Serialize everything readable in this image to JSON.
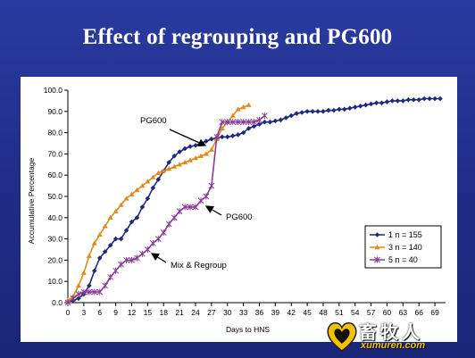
{
  "slide": {
    "title": "Effect of regrouping and PG600"
  },
  "chart_data": {
    "type": "line",
    "title": "",
    "xlabel": "Days to HNS",
    "ylabel": "Accumulative Percentage",
    "xlim": [
      0,
      71
    ],
    "ylim": [
      0,
      100
    ],
    "x_ticks": [
      0,
      3,
      6,
      9,
      12,
      15,
      18,
      21,
      24,
      27,
      30,
      33,
      36,
      39,
      42,
      45,
      48,
      51,
      54,
      57,
      60,
      63,
      66,
      69
    ],
    "y_ticks": [
      "0.0",
      "10.0",
      "20.0",
      "30.0",
      "40.0",
      "50.0",
      "60.0",
      "70.0",
      "80.0",
      "90.0",
      "100.0"
    ],
    "grid": false,
    "legend_position": "bottom-right",
    "series": [
      {
        "name": "1 n = 155",
        "color": "#1f2a7a",
        "marker": "diamond",
        "points": [
          [
            0,
            0.5
          ],
          [
            1,
            1
          ],
          [
            2,
            2
          ],
          [
            3,
            4
          ],
          [
            4,
            8
          ],
          [
            5,
            15
          ],
          [
            6,
            21
          ],
          [
            7,
            24
          ],
          [
            8,
            27
          ],
          [
            9,
            30
          ],
          [
            10,
            30
          ],
          [
            11,
            34
          ],
          [
            12,
            38
          ],
          [
            13,
            40
          ],
          [
            14,
            45
          ],
          [
            15,
            49
          ],
          [
            16,
            54
          ],
          [
            17,
            58
          ],
          [
            18,
            62
          ],
          [
            19,
            66
          ],
          [
            20,
            69
          ],
          [
            21,
            71
          ],
          [
            22,
            72.5
          ],
          [
            23,
            73.5
          ],
          [
            24,
            74
          ],
          [
            25,
            75
          ],
          [
            26,
            76
          ],
          [
            27,
            77
          ],
          [
            28,
            77.5
          ],
          [
            29,
            78
          ],
          [
            30,
            78
          ],
          [
            31,
            78.5
          ],
          [
            32,
            79
          ],
          [
            33,
            80
          ],
          [
            34,
            82
          ],
          [
            35,
            83
          ],
          [
            36,
            84
          ],
          [
            37,
            85
          ],
          [
            38,
            85
          ],
          [
            39,
            85.5
          ],
          [
            40,
            86
          ],
          [
            41,
            87
          ],
          [
            42,
            88
          ],
          [
            43,
            89
          ],
          [
            44,
            89.5
          ],
          [
            45,
            90
          ],
          [
            46,
            90
          ],
          [
            47,
            90
          ],
          [
            48,
            90
          ],
          [
            49,
            90.5
          ],
          [
            50,
            90.5
          ],
          [
            51,
            91
          ],
          [
            52,
            91
          ],
          [
            53,
            91.5
          ],
          [
            54,
            92
          ],
          [
            55,
            92.5
          ],
          [
            56,
            93
          ],
          [
            57,
            93.5
          ],
          [
            58,
            94
          ],
          [
            59,
            94
          ],
          [
            60,
            94.5
          ],
          [
            61,
            95
          ],
          [
            62,
            95
          ],
          [
            63,
            95
          ],
          [
            64,
            95.5
          ],
          [
            65,
            95.5
          ],
          [
            66,
            95.5
          ],
          [
            67,
            96
          ],
          [
            68,
            96
          ],
          [
            69,
            96
          ],
          [
            70,
            96
          ]
        ]
      },
      {
        "name": "3 n = 140",
        "color": "#e08a1c",
        "marker": "triangle",
        "points": [
          [
            0,
            1
          ],
          [
            1,
            3
          ],
          [
            2,
            8
          ],
          [
            3,
            14
          ],
          [
            4,
            22
          ],
          [
            5,
            28
          ],
          [
            6,
            32
          ],
          [
            7,
            36
          ],
          [
            8,
            40
          ],
          [
            9,
            43
          ],
          [
            10,
            46
          ],
          [
            11,
            49
          ],
          [
            12,
            51
          ],
          [
            13,
            53
          ],
          [
            14,
            55
          ],
          [
            15,
            57
          ],
          [
            16,
            59
          ],
          [
            17,
            61
          ],
          [
            18,
            62
          ],
          [
            19,
            63
          ],
          [
            20,
            64
          ],
          [
            21,
            65
          ],
          [
            22,
            66
          ],
          [
            23,
            67
          ],
          [
            24,
            68
          ],
          [
            25,
            69
          ],
          [
            26,
            70
          ],
          [
            27,
            72
          ],
          [
            28,
            77
          ],
          [
            29,
            82
          ],
          [
            30,
            85
          ],
          [
            31,
            88
          ],
          [
            32,
            91
          ],
          [
            33,
            92
          ],
          [
            34,
            93
          ]
        ]
      },
      {
        "name": "5 n = 40",
        "color": "#8a3a9a",
        "marker": "star",
        "points": [
          [
            0,
            0
          ],
          [
            1,
            2
          ],
          [
            2,
            4
          ],
          [
            3,
            5
          ],
          [
            4,
            5
          ],
          [
            5,
            5
          ],
          [
            6,
            5
          ],
          [
            7,
            8
          ],
          [
            8,
            12
          ],
          [
            9,
            15
          ],
          [
            10,
            18
          ],
          [
            11,
            20
          ],
          [
            12,
            20
          ],
          [
            13,
            21
          ],
          [
            14,
            23
          ],
          [
            15,
            25
          ],
          [
            16,
            28
          ],
          [
            17,
            30
          ],
          [
            18,
            33
          ],
          [
            19,
            37
          ],
          [
            20,
            40
          ],
          [
            21,
            43
          ],
          [
            22,
            45
          ],
          [
            23,
            45
          ],
          [
            24,
            45
          ],
          [
            25,
            48
          ],
          [
            26,
            50
          ],
          [
            27,
            55
          ],
          [
            28,
            78
          ],
          [
            29,
            85
          ],
          [
            30,
            85
          ],
          [
            31,
            85
          ],
          [
            32,
            85
          ],
          [
            33,
            85
          ],
          [
            34,
            85
          ],
          [
            35,
            85
          ],
          [
            36,
            86
          ],
          [
            37,
            88
          ]
        ]
      }
    ],
    "annotations": [
      {
        "text": "PG600",
        "x": 25,
        "y": 82
      },
      {
        "text": "PG600",
        "x": 33,
        "y": 40
      },
      {
        "text": "Mix & Regroup",
        "x": 23,
        "y": 17
      }
    ]
  },
  "watermark": {
    "brand": "畜牧人",
    "url": "xumuren.com"
  }
}
